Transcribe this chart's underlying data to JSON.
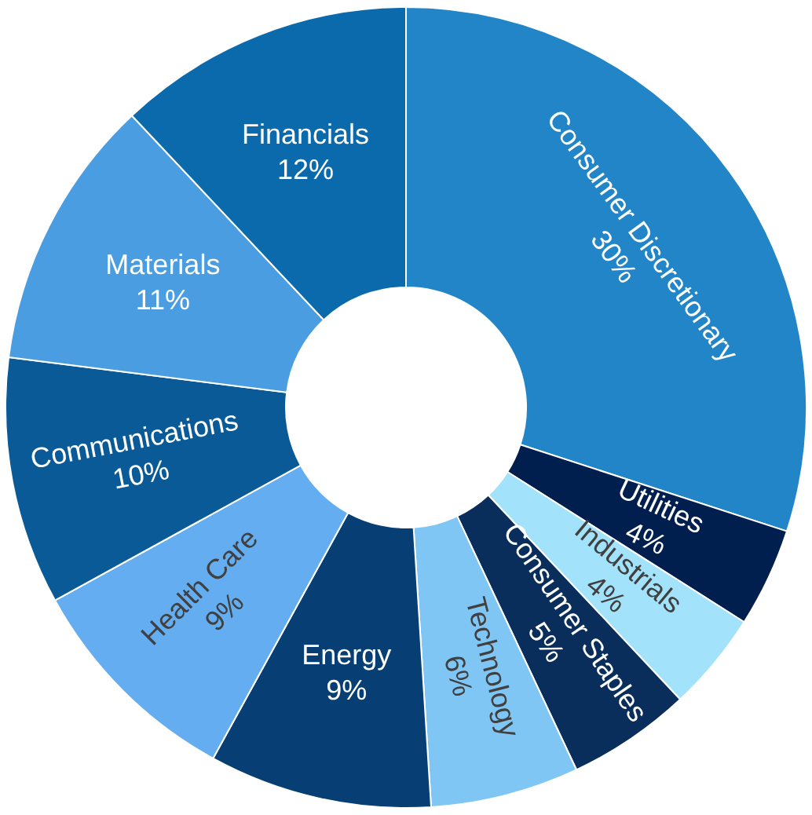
{
  "chart_data": {
    "type": "donut",
    "categories": [
      "Consumer Discretionary",
      "Utilities",
      "Industrials",
      "Consumer Staples",
      "Technology",
      "Energy",
      "Health Care",
      "Communications",
      "Materials",
      "Financials"
    ],
    "values": [
      30,
      4,
      4,
      5,
      6,
      9,
      9,
      10,
      11,
      12
    ],
    "colors": [
      "#2185c8",
      "#001f4f",
      "#a3e2fb",
      "#0a2e5c",
      "#80c6f5",
      "#073f74",
      "#63adf0",
      "#0a5a97",
      "#4a9de0",
      "#0b6aab"
    ],
    "value_labels": [
      "30%",
      "4%",
      "4%",
      "5%",
      "6%",
      "9%",
      "9%",
      "10%",
      "11%",
      "12%"
    ],
    "legend": false
  }
}
